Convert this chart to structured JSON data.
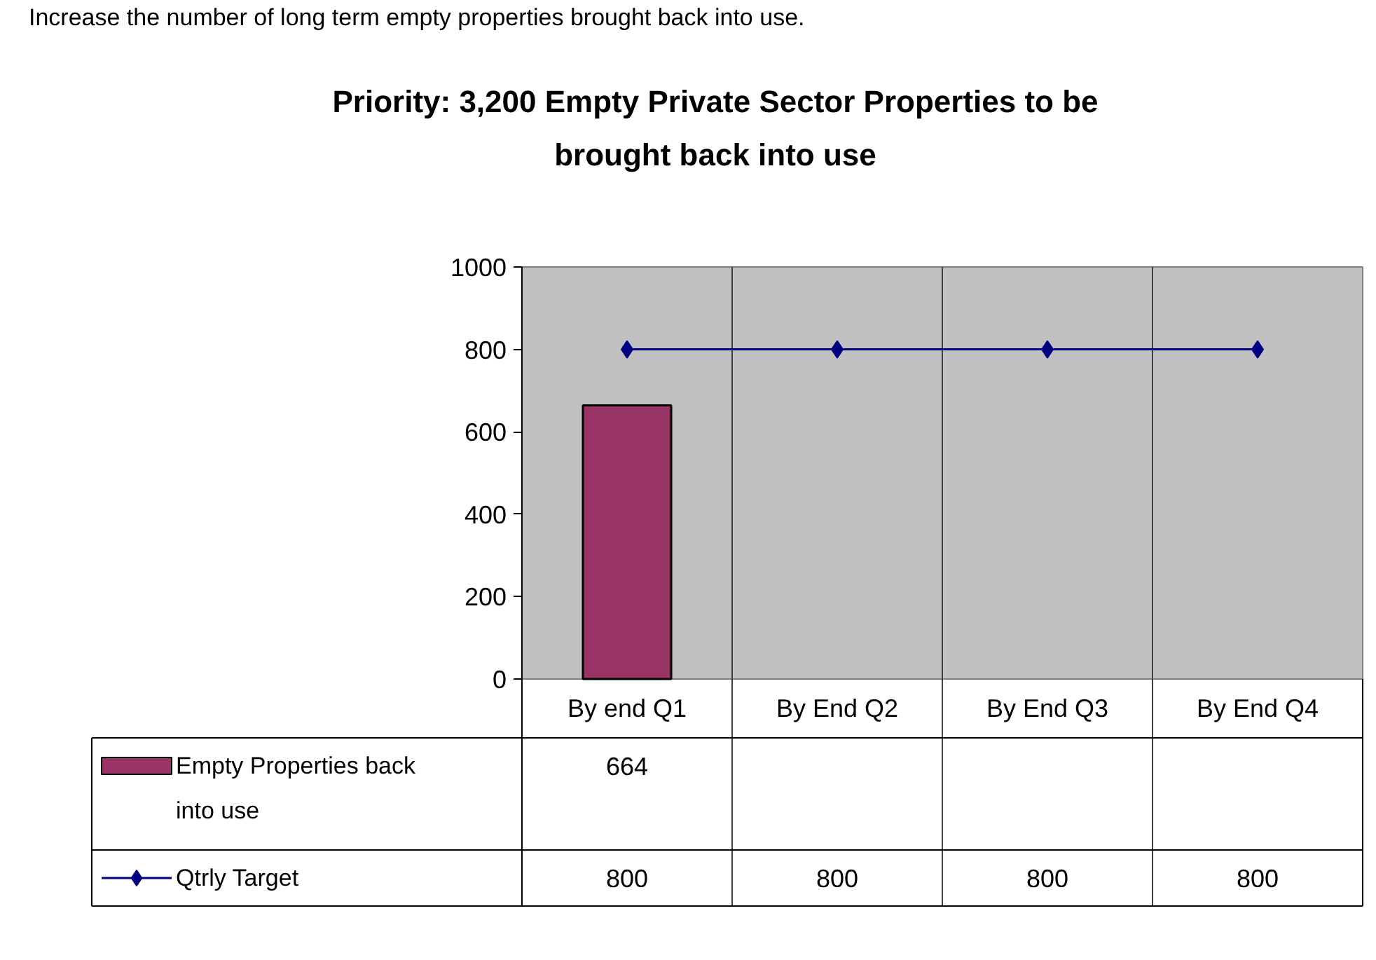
{
  "chart_data": {
    "type": "bar",
    "title": "Priority: 3,200 Empty Private Sector Properties to be brought back into use",
    "annotations": [
      "Increase the number of long term empty properties brought back into use."
    ],
    "categories": [
      "By end Q1",
      "By End Q2",
      "By End Q3",
      "By End Q4"
    ],
    "series": [
      {
        "name": "Empty Properties back into use",
        "color": "#993366",
        "values": [
          664,
          null,
          null,
          null
        ]
      },
      {
        "name": "Qtrly Target",
        "type": "line",
        "color": "#000080",
        "values": [
          800,
          800,
          800,
          800
        ]
      }
    ],
    "ylim": [
      0,
      1000
    ],
    "yticks": [
      0,
      200,
      400,
      600,
      800,
      1000
    ],
    "marker": "diamond",
    "data_labels": true,
    "legend": "bottom"
  }
}
